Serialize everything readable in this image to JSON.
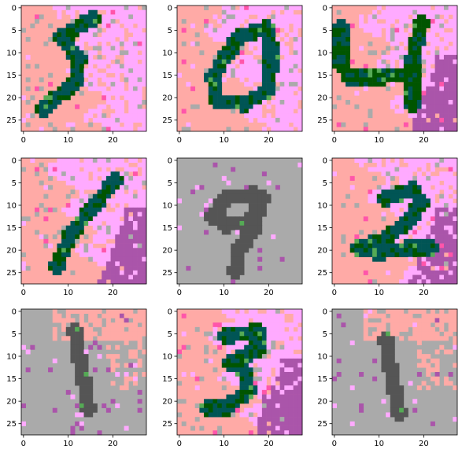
{
  "grid": {
    "rows": 3,
    "cols": 3
  },
  "axes": {
    "x_ticks": [
      "0",
      "10",
      "20"
    ],
    "y_ticks": [
      "0",
      "5",
      "10",
      "15",
      "20",
      "25"
    ],
    "x_tick_values": [
      0,
      10,
      20
    ],
    "y_tick_values": [
      0,
      5,
      10,
      15,
      20,
      25
    ],
    "image_size": 28
  },
  "colors": {
    "salmon": "#ffaaa6",
    "pink": "#ffaaff",
    "gray": "#aaaaaa",
    "dark_gray": "#555555",
    "teal": "#005555",
    "dark_green": "#005500",
    "green": "#55aa55",
    "purple": "#aa55aa",
    "magenta": "#ff55aa",
    "white": "#ffffff"
  },
  "panels": [
    {
      "id": "digit-5",
      "background": "salmon",
      "secondary": "pink",
      "stroke": [
        "teal",
        "dark_green"
      ],
      "strokes": [
        [
          [
            16,
            3
          ],
          [
            9,
            7
          ],
          [
            13,
            12
          ],
          [
            12,
            17
          ],
          [
            5,
            23
          ]
        ]
      ]
    },
    {
      "id": "digit-0",
      "background": "salmon",
      "secondary": "pink",
      "stroke": [
        "teal",
        "dark_green"
      ],
      "strokes": [
        [
          [
            20,
            5
          ],
          [
            14,
            7
          ],
          [
            11,
            11
          ],
          [
            8,
            16
          ],
          [
            9,
            21
          ],
          [
            15,
            22
          ],
          [
            20,
            19
          ],
          [
            21,
            14
          ],
          [
            21,
            9
          ],
          [
            20,
            5
          ]
        ]
      ]
    },
    {
      "id": "digit-4",
      "background": "salmon",
      "secondary": "pink",
      "stroke": [
        "dark_green",
        "teal"
      ],
      "strokes": [
        [
          [
            2,
            5
          ],
          [
            2,
            13
          ],
          [
            4,
            16
          ],
          [
            11,
            16
          ],
          [
            17,
            15
          ],
          [
            18,
            12
          ]
        ],
        [
          [
            20,
            4
          ],
          [
            18,
            12
          ],
          [
            18,
            22
          ]
        ]
      ]
    },
    {
      "id": "digit-1",
      "background": "salmon",
      "secondary": "pink",
      "stroke": [
        "teal",
        "dark_green"
      ],
      "strokes": [
        [
          [
            21,
            5
          ],
          [
            16,
            11
          ],
          [
            11,
            17
          ],
          [
            8,
            24
          ]
        ]
      ]
    },
    {
      "id": "digit-9",
      "background": "gray",
      "secondary": "gray",
      "stroke": [
        "dark_gray",
        "dark_gray"
      ],
      "strokes": [
        [
          [
            17,
            8
          ],
          [
            11,
            9
          ],
          [
            8,
            13
          ],
          [
            11,
            15
          ],
          [
            16,
            14
          ],
          [
            19,
            9
          ],
          [
            17,
            8
          ]
        ],
        [
          [
            19,
            9
          ],
          [
            17,
            16
          ],
          [
            14,
            20
          ],
          [
            13,
            25
          ]
        ]
      ]
    },
    {
      "id": "digit-2",
      "background": "salmon",
      "secondary": "pink",
      "stroke": [
        "teal",
        "dark_green"
      ],
      "strokes": [
        [
          [
            12,
            9
          ],
          [
            18,
            7
          ],
          [
            20,
            10
          ],
          [
            17,
            14
          ],
          [
            12,
            18
          ],
          [
            6,
            20
          ],
          [
            10,
            21
          ],
          [
            18,
            20
          ],
          [
            22,
            20
          ]
        ]
      ]
    },
    {
      "id": "digit-1b",
      "background": "gray",
      "secondary": "salmon",
      "stroke": [
        "dark_gray",
        "dark_gray"
      ],
      "strokes": [
        [
          [
            12,
            5
          ],
          [
            13,
            11
          ],
          [
            14,
            16
          ],
          [
            15,
            22
          ]
        ]
      ]
    },
    {
      "id": "digit-3",
      "background": "salmon",
      "secondary": "pink",
      "stroke": [
        "teal",
        "dark_green"
      ],
      "strokes": [
        [
          [
            11,
            6
          ],
          [
            18,
            5
          ],
          [
            18,
            9
          ],
          [
            12,
            12
          ],
          [
            15,
            14
          ],
          [
            16,
            18
          ],
          [
            11,
            22
          ],
          [
            7,
            22
          ]
        ]
      ]
    },
    {
      "id": "digit-1c",
      "background": "gray",
      "secondary": "salmon",
      "stroke": [
        "dark_gray",
        "dark_gray"
      ],
      "strokes": [
        [
          [
            12,
            7
          ],
          [
            13,
            13
          ],
          [
            14,
            18
          ],
          [
            15,
            23
          ]
        ]
      ]
    }
  ]
}
